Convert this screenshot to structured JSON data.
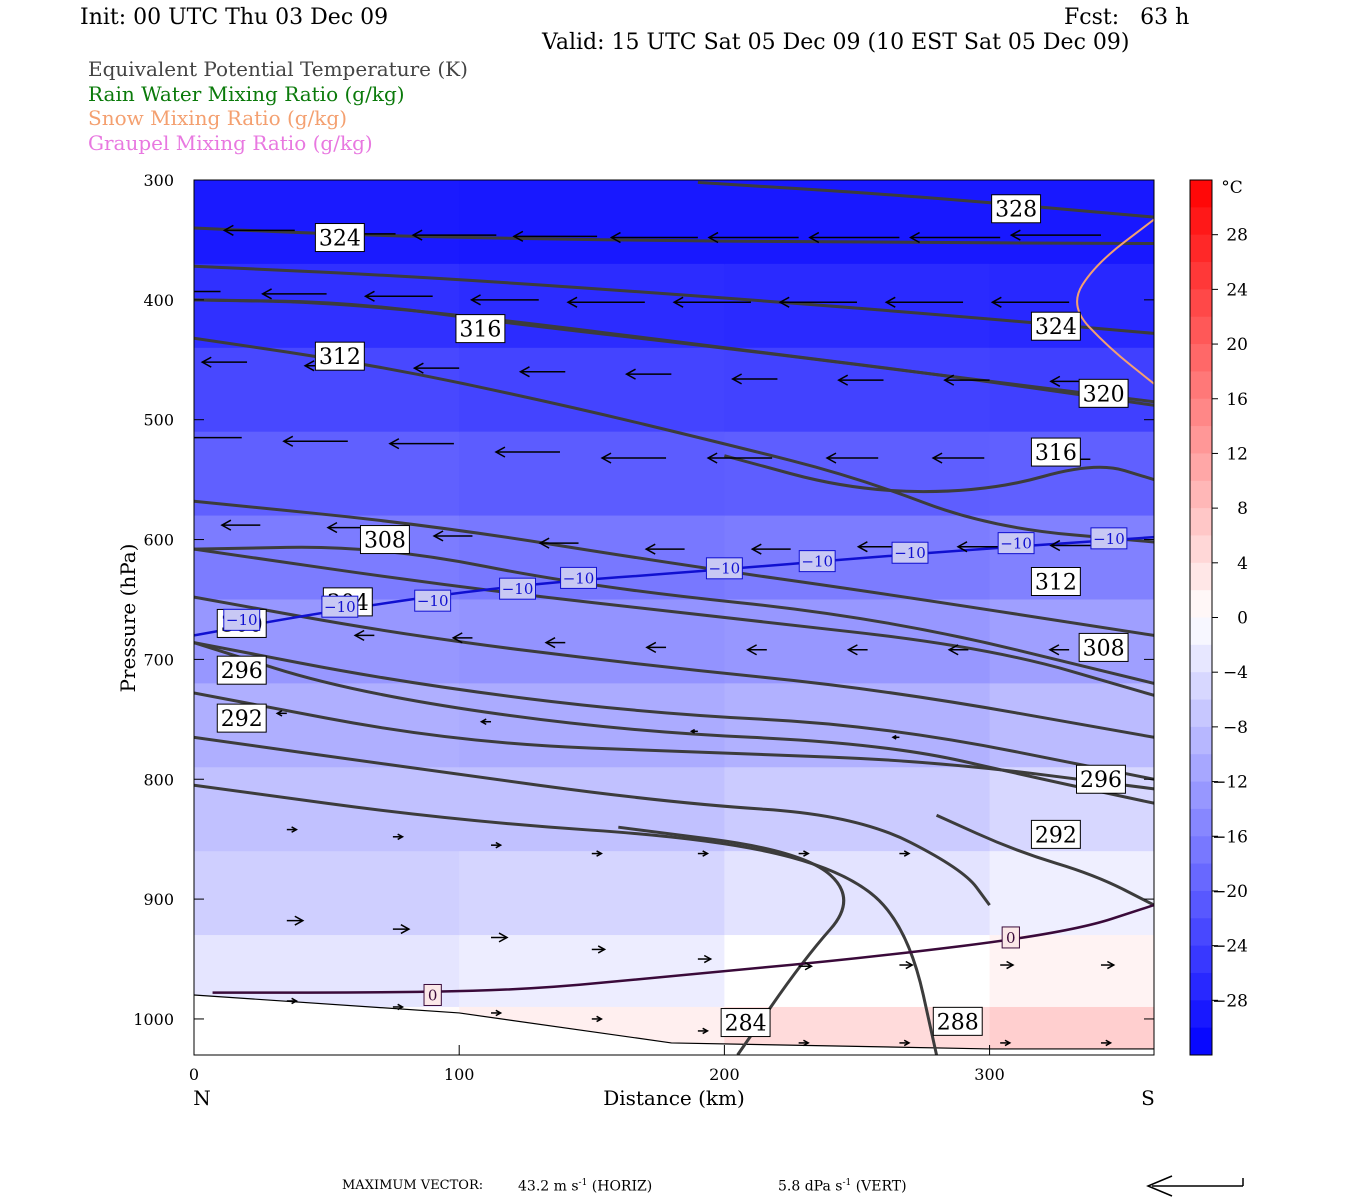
{
  "header": {
    "init": "Init: 00 UTC Thu 03 Dec 09",
    "fcst": "Fcst:   63 h",
    "valid": "Valid: 15 UTC Sat 05 Dec 09 (10 EST Sat 05 Dec 09)"
  },
  "fields": [
    {
      "label": "Equivalent Potential Temperature (K)",
      "color": "#444444"
    },
    {
      "label": "Rain Water Mixing Ratio (g/kg)",
      "color": "#0a7a0a"
    },
    {
      "label": "Snow Mixing Ratio (g/kg)",
      "color": "#f4a070"
    },
    {
      "label": "Graupel Mixing Ratio (g/kg)",
      "color": "#e878e0"
    }
  ],
  "chart_data": {
    "type": "contour",
    "xlabel": "Distance (km)",
    "ylabel": "Pressure (hPa)",
    "xlim": [
      0,
      362
    ],
    "ylim": [
      1030,
      300
    ],
    "x_ticks": [
      0,
      100,
      200,
      300
    ],
    "y_ticks": [
      300,
      400,
      500,
      600,
      700,
      800,
      900,
      1000
    ],
    "endpoints": {
      "left": "N",
      "right": "S"
    },
    "colorbar": {
      "unit": "°C",
      "ticks": [
        28,
        24,
        20,
        16,
        12,
        8,
        4,
        0,
        -4,
        -8,
        -12,
        -16,
        -20,
        -24,
        -28
      ],
      "range": [
        -32,
        32
      ]
    },
    "temperature_shading": [
      {
        "x": 0,
        "t": [
          -30,
          -27,
          -24,
          -21,
          -18,
          -14,
          -11,
          -8,
          -7,
          -5,
          -1,
          2
        ]
      },
      {
        "x": 100,
        "t": [
          -30,
          -28,
          -25,
          -22,
          -19,
          -15,
          -12,
          -9,
          -7,
          -5,
          -2,
          3
        ]
      },
      {
        "x": 200,
        "t": [
          -30,
          -28,
          -25,
          -22,
          -19,
          -15,
          -12,
          -9,
          -6,
          -3,
          1,
          6
        ]
      },
      {
        "x": 300,
        "t": [
          -30,
          -28,
          -26,
          -22,
          -18,
          -14,
          -11,
          -7,
          -4,
          -1,
          3,
          8
        ]
      },
      {
        "x": 362,
        "t": [
          -30,
          -28,
          -26,
          -22,
          -18,
          -13,
          -10,
          -6,
          -3,
          0,
          4,
          9
        ]
      }
    ],
    "shading_levels": [
      300,
      370,
      440,
      510,
      580,
      650,
      720,
      790,
      860,
      930,
      990,
      1030
    ],
    "theta_e_contours": [
      {
        "label": "328",
        "points": [
          [
            190,
            302
          ],
          [
            270,
            313
          ],
          [
            362,
            331
          ]
        ],
        "label_at": [
          310,
          324
        ]
      },
      {
        "label": "324",
        "points": [
          [
            0,
            340
          ],
          [
            60,
            346
          ],
          [
            150,
            350
          ],
          [
            250,
            352
          ],
          [
            362,
            353
          ]
        ],
        "label_at": [
          55,
          348
        ]
      },
      {
        "label": "324",
        "points": [
          [
            0,
            372
          ],
          [
            80,
            380
          ],
          [
            180,
            395
          ],
          [
            280,
            412
          ],
          [
            362,
            428
          ]
        ],
        "label_at": [
          325,
          422
        ]
      },
      {
        "label": "316",
        "points": [
          [
            0,
            400
          ],
          [
            50,
            402
          ],
          [
            110,
            415
          ],
          [
            200,
            440
          ],
          [
            280,
            462
          ],
          [
            362,
            488
          ]
        ],
        "label_at": [
          108,
          424
        ]
      },
      {
        "label": "320",
        "points": [
          [
            0,
            400
          ],
          [
            60,
            402
          ],
          [
            120,
            420
          ],
          [
            200,
            440
          ],
          [
            300,
            468
          ],
          [
            362,
            485
          ]
        ],
        "label_at": [
          343,
          478
        ]
      },
      {
        "label": "312",
        "points": [
          [
            0,
            432
          ],
          [
            70,
            455
          ],
          [
            140,
            488
          ],
          [
            200,
            520
          ],
          [
            250,
            548
          ],
          [
            300,
            590
          ],
          [
            362,
            602
          ]
        ],
        "label_at": [
          55,
          447
        ]
      },
      {
        "label": "316",
        "points": [
          [
            200,
            530
          ],
          [
            250,
            560
          ],
          [
            300,
            560
          ],
          [
            340,
            535
          ],
          [
            362,
            550
          ]
        ],
        "label_at": [
          325,
          527
        ]
      },
      {
        "label": "312",
        "points": [
          [
            0,
            568
          ],
          [
            90,
            588
          ],
          [
            180,
            620
          ],
          [
            260,
            645
          ],
          [
            362,
            680
          ]
        ],
        "label_at": [
          325,
          635
        ]
      },
      {
        "label": "308",
        "points": [
          [
            0,
            608
          ],
          [
            100,
            640
          ],
          [
            200,
            665
          ],
          [
            300,
            690
          ],
          [
            362,
            730
          ]
        ],
        "label_at": [
          343,
          690
        ]
      },
      {
        "label": "308",
        "points": [
          [
            0,
            608
          ],
          [
            70,
            605
          ],
          [
            150,
            640
          ],
          [
            260,
            665
          ],
          [
            362,
            720
          ]
        ],
        "label_at": [
          72,
          600
        ]
      },
      {
        "label": "304",
        "points": [
          [
            0,
            648
          ],
          [
            80,
            680
          ],
          [
            170,
            705
          ],
          [
            260,
            725
          ],
          [
            362,
            765
          ]
        ],
        "label_at": [
          58,
          652
        ]
      },
      {
        "label": "300",
        "points": [
          [
            0,
            686
          ],
          [
            80,
            720
          ],
          [
            170,
            745
          ],
          [
            260,
            755
          ],
          [
            362,
            800
          ]
        ],
        "label_at": [
          18,
          670
        ]
      },
      {
        "label": "296",
        "points": [
          [
            0,
            728
          ],
          [
            100,
            770
          ],
          [
            200,
            778
          ],
          [
            280,
            785
          ],
          [
            362,
            808
          ]
        ],
        "label_at": [
          342,
          800
        ]
      },
      {
        "label": "296",
        "points": [
          [
            0,
            686
          ],
          [
            60,
            728
          ],
          [
            160,
            760
          ],
          [
            260,
            770
          ],
          [
            320,
            800
          ],
          [
            362,
            820
          ]
        ],
        "label_at": [
          18,
          709
        ]
      },
      {
        "label": "292",
        "points": [
          [
            0,
            765
          ],
          [
            80,
            790
          ],
          [
            180,
            820
          ],
          [
            250,
            830
          ],
          [
            290,
            875
          ],
          [
            300,
            905
          ]
        ],
        "label_at": [
          18,
          749
        ]
      },
      {
        "label": "292",
        "points": [
          [
            280,
            830
          ],
          [
            310,
            860
          ],
          [
            340,
            880
          ],
          [
            362,
            905
          ]
        ],
        "label_at": [
          325,
          846
        ]
      },
      {
        "label": "288",
        "points": [
          [
            0,
            805
          ],
          [
            100,
            835
          ],
          [
            200,
            850
          ],
          [
            250,
            880
          ],
          [
            270,
            930
          ],
          [
            280,
            1030
          ]
        ],
        "label_at": [
          288,
          1002
        ]
      },
      {
        "label": "284",
        "points": [
          [
            160,
            840
          ],
          [
            230,
            860
          ],
          [
            250,
            900
          ],
          [
            230,
            950
          ],
          [
            205,
            1030
          ]
        ],
        "label_at": [
          208,
          1003
        ]
      }
    ],
    "isotherm_minus10": {
      "label": "-10",
      "points": [
        [
          0,
          680
        ],
        [
          50,
          660
        ],
        [
          120,
          638
        ],
        [
          200,
          625
        ],
        [
          270,
          612
        ],
        [
          362,
          598
        ]
      ],
      "labels_at": [
        [
          18,
          667
        ],
        [
          55,
          656
        ],
        [
          90,
          651
        ],
        [
          122,
          641
        ],
        [
          145,
          632
        ],
        [
          200,
          624
        ],
        [
          235,
          618
        ],
        [
          270,
          611
        ],
        [
          310,
          603
        ],
        [
          345,
          599
        ]
      ]
    },
    "isotherm_0": {
      "label": "0",
      "points": [
        [
          7,
          978
        ],
        [
          80,
          978
        ],
        [
          130,
          975
        ],
        [
          180,
          964
        ],
        [
          250,
          950
        ],
        [
          330,
          928
        ],
        [
          362,
          905
        ]
      ],
      "labels_at": [
        [
          90,
          980
        ],
        [
          308,
          932
        ]
      ]
    },
    "snow_contour": {
      "points": [
        [
          362,
          333
        ],
        [
          340,
          370
        ],
        [
          330,
          405
        ],
        [
          345,
          440
        ],
        [
          362,
          470
        ]
      ]
    },
    "wind_vectors": [
      {
        "x": 0,
        "p": 340,
        "u": -20
      },
      {
        "x": 38,
        "p": 342,
        "u": -22
      },
      {
        "x": 76,
        "p": 345,
        "u": -24
      },
      {
        "x": 114,
        "p": 346,
        "u": -26
      },
      {
        "x": 152,
        "p": 347,
        "u": -26
      },
      {
        "x": 190,
        "p": 348,
        "u": -27
      },
      {
        "x": 228,
        "p": 348,
        "u": -28
      },
      {
        "x": 266,
        "p": 348,
        "u": -28
      },
      {
        "x": 304,
        "p": 348,
        "u": -28
      },
      {
        "x": 342,
        "p": 346,
        "u": -28
      },
      {
        "x": 10,
        "p": 393,
        "u": -18
      },
      {
        "x": 50,
        "p": 395,
        "u": -20
      },
      {
        "x": 90,
        "p": 397,
        "u": -21
      },
      {
        "x": 130,
        "p": 400,
        "u": -21
      },
      {
        "x": 170,
        "p": 402,
        "u": -24
      },
      {
        "x": 210,
        "p": 402,
        "u": -24
      },
      {
        "x": 250,
        "p": 402,
        "u": -24
      },
      {
        "x": 290,
        "p": 402,
        "u": -24
      },
      {
        "x": 330,
        "p": 402,
        "u": -24
      },
      {
        "x": 20,
        "p": 452,
        "u": -14
      },
      {
        "x": 60,
        "p": 455,
        "u": -15
      },
      {
        "x": 100,
        "p": 457,
        "u": -14
      },
      {
        "x": 140,
        "p": 460,
        "u": -14
      },
      {
        "x": 180,
        "p": 462,
        "u": -14
      },
      {
        "x": 220,
        "p": 466,
        "u": -14
      },
      {
        "x": 260,
        "p": 467,
        "u": -14
      },
      {
        "x": 300,
        "p": 467,
        "u": -14
      },
      {
        "x": 340,
        "p": 468,
        "u": -14
      },
      {
        "x": 18,
        "p": 515,
        "u": -20
      },
      {
        "x": 58,
        "p": 518,
        "u": -20
      },
      {
        "x": 98,
        "p": 520,
        "u": -20
      },
      {
        "x": 138,
        "p": 527,
        "u": -20
      },
      {
        "x": 178,
        "p": 532,
        "u": -20
      },
      {
        "x": 218,
        "p": 532,
        "u": -20
      },
      {
        "x": 258,
        "p": 532,
        "u": -16
      },
      {
        "x": 298,
        "p": 532,
        "u": -16
      },
      {
        "x": 338,
        "p": 533,
        "u": -16
      },
      {
        "x": 25,
        "p": 588,
        "u": -12
      },
      {
        "x": 65,
        "p": 590,
        "u": -12
      },
      {
        "x": 105,
        "p": 597,
        "u": -12
      },
      {
        "x": 145,
        "p": 603,
        "u": -12
      },
      {
        "x": 185,
        "p": 608,
        "u": -12
      },
      {
        "x": 225,
        "p": 608,
        "u": -12
      },
      {
        "x": 265,
        "p": 606,
        "u": -12
      },
      {
        "x": 305,
        "p": 606,
        "u": -14
      },
      {
        "x": 340,
        "p": 605,
        "u": -14
      },
      {
        "x": 68,
        "p": 680,
        "u": -6
      },
      {
        "x": 105,
        "p": 682,
        "u": -6
      },
      {
        "x": 140,
        "p": 686,
        "u": -6
      },
      {
        "x": 178,
        "p": 690,
        "u": -6
      },
      {
        "x": 216,
        "p": 692,
        "u": -6
      },
      {
        "x": 254,
        "p": 692,
        "u": -6
      },
      {
        "x": 292,
        "p": 692,
        "u": -6
      },
      {
        "x": 330,
        "p": 692,
        "u": -6
      },
      {
        "x": 35,
        "p": 745,
        "u": -3
      },
      {
        "x": 112,
        "p": 752,
        "u": -3
      },
      {
        "x": 190,
        "p": 760,
        "u": -2
      },
      {
        "x": 266,
        "p": 765,
        "u": -2
      },
      {
        "x": 35,
        "p": 842,
        "u": 3
      },
      {
        "x": 75,
        "p": 848,
        "u": 3
      },
      {
        "x": 112,
        "p": 855,
        "u": 3
      },
      {
        "x": 150,
        "p": 862,
        "u": 3
      },
      {
        "x": 190,
        "p": 862,
        "u": 3
      },
      {
        "x": 228,
        "p": 862,
        "u": 3
      },
      {
        "x": 266,
        "p": 862,
        "u": 3
      },
      {
        "x": 35,
        "p": 918,
        "u": 5
      },
      {
        "x": 75,
        "p": 925,
        "u": 5
      },
      {
        "x": 112,
        "p": 932,
        "u": 5
      },
      {
        "x": 150,
        "p": 942,
        "u": 4
      },
      {
        "x": 190,
        "p": 950,
        "u": 4
      },
      {
        "x": 228,
        "p": 956,
        "u": 4
      },
      {
        "x": 266,
        "p": 955,
        "u": 4
      },
      {
        "x": 304,
        "p": 955,
        "u": 4
      },
      {
        "x": 342,
        "p": 955,
        "u": 4
      },
      {
        "x": 35,
        "p": 985,
        "u": 3
      },
      {
        "x": 75,
        "p": 990,
        "u": 3
      },
      {
        "x": 112,
        "p": 995,
        "u": 3
      },
      {
        "x": 150,
        "p": 1000,
        "u": 3
      },
      {
        "x": 190,
        "p": 1010,
        "u": 3
      },
      {
        "x": 228,
        "p": 1020,
        "u": 3
      },
      {
        "x": 266,
        "p": 1020,
        "u": 3
      },
      {
        "x": 304,
        "p": 1020,
        "u": 3
      },
      {
        "x": 342,
        "p": 1020,
        "u": 3
      }
    ],
    "terrain": [
      [
        0,
        980
      ],
      [
        100,
        995
      ],
      [
        180,
        1020
      ],
      [
        300,
        1025
      ],
      [
        362,
        1025
      ]
    ]
  },
  "footer": {
    "label": "MAXIMUM VECTOR:",
    "horiz_value": "43.2",
    "horiz_unit": "m s",
    "horiz_exp": "-1",
    "horiz_tag": "(HORIZ)",
    "vert_value": "5.8",
    "vert_unit": "dPa s",
    "vert_exp": "-1",
    "vert_tag": "(VERT)"
  }
}
